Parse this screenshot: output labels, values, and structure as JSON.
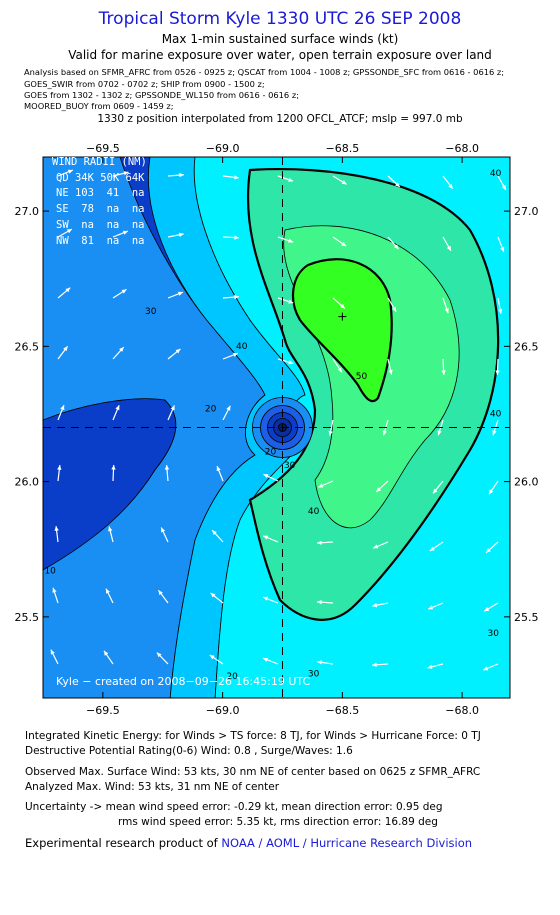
{
  "header": {
    "title": "Tropical Storm Kyle 1330 UTC 26 SEP 2008",
    "subtitle1": "Max 1-min sustained surface winds (kt)",
    "subtitle2": "Valid for marine exposure over water, open terrain exposure over land",
    "analysis_lines": [
      "Analysis based on   SFMR_AFRC from 0526 - 0925 z;  QSCAT from 1004 - 1008 z;  GPSSONDE_SFC from 0616 - 0616 z;",
      "GOES_SWIR from 0702 - 0702 z;  SHIP from 0900 - 1500 z;",
      "GOES from 1302 - 1302 z;  GPSSONDE_WL150 from 0616 - 0616 z;",
      "MOORED_BUOY from 0609 - 1459 z;"
    ],
    "position_line": "1330 z position interpolated from 1200 OFCL_ATCF; mslp = 997.0 mb"
  },
  "chart_data": {
    "type": "contour",
    "xlim": [
      -69.75,
      -67.8
    ],
    "ylim": [
      25.2,
      27.2
    ],
    "x_ticks": [
      -69.5,
      -69.0,
      -68.5,
      -68.0
    ],
    "x_tick_labels": [
      "−69.5",
      "−69.0",
      "−68.5",
      "−68.0"
    ],
    "y_ticks": [
      25.5,
      26.0,
      26.5,
      27.0
    ],
    "y_tick_labels": [
      "25.5",
      "26.0",
      "26.5",
      "27.0"
    ],
    "storm_center": {
      "lon": -68.75,
      "lat": 26.2
    },
    "max_wind_marker": {
      "lon": -68.5,
      "lat": 26.61
    },
    "contour_labels": [
      {
        "text": "10",
        "lon": -69.72,
        "lat": 25.66
      },
      {
        "text": "20",
        "lon": -69.05,
        "lat": 26.26
      },
      {
        "text": "20",
        "lon": -68.96,
        "lat": 25.27
      },
      {
        "text": "20",
        "lon": -68.8,
        "lat": 26.1
      },
      {
        "text": "30",
        "lon": -69.3,
        "lat": 26.62
      },
      {
        "text": "30",
        "lon": -68.72,
        "lat": 26.05
      },
      {
        "text": "30",
        "lon": -68.62,
        "lat": 25.28
      },
      {
        "text": "30",
        "lon": -67.87,
        "lat": 25.43
      },
      {
        "text": "40",
        "lon": -68.92,
        "lat": 26.49
      },
      {
        "text": "40",
        "lon": -68.62,
        "lat": 25.88
      },
      {
        "text": "40",
        "lon": -67.86,
        "lat": 26.24
      },
      {
        "text": "40",
        "lon": -67.86,
        "lat": 27.13
      },
      {
        "text": "50",
        "lon": -68.42,
        "lat": 26.38
      }
    ],
    "wind_radii": {
      "title": "WIND RADII (NM)",
      "rows": [
        "QD 34K 50K 64K",
        "NE 103  41  na",
        "SE  78  na  na",
        "SW  na  na  na",
        "NW  81  na  na"
      ]
    },
    "credit": "Kyle − created on 2008−09−26 16:45:19 UTC",
    "colors": {
      "level_0": "#0a3ec8",
      "level_10": "#1d5ee6",
      "level_20": "#1a8ff3",
      "level_30": "#00c6ff",
      "level_40": "#00f0ff",
      "level_50": "#2ee6a8",
      "level_60": "#40f58a",
      "level_max": "#33ff22"
    }
  },
  "footer": {
    "ike": "Integrated Kinetic Energy:  for Winds > TS force: 8 TJ,  for Winds > Hurricane Force: 0 TJ",
    "dpr": "Destructive Potential Rating(0-6)   Wind: 0.8 , Surge/Waves: 1.6",
    "obs": "Observed Max. Surface Wind: 53 kts, 30 nm NE of center based on 0625 z SFMR_AFRC",
    "analyzed": "Analyzed Max. Wind: 53 kts, 31 nm NE of center",
    "uncert1": "Uncertainty -> mean wind speed error:  -0.29 kt,   mean direction error: 0.95 deg",
    "uncert2": "rms wind speed error: 5.35 kt,   rms direction error: 16.89 deg",
    "product_prefix": "Experimental research product of ",
    "product_org": "NOAA / AOML / Hurricane Research Division"
  }
}
